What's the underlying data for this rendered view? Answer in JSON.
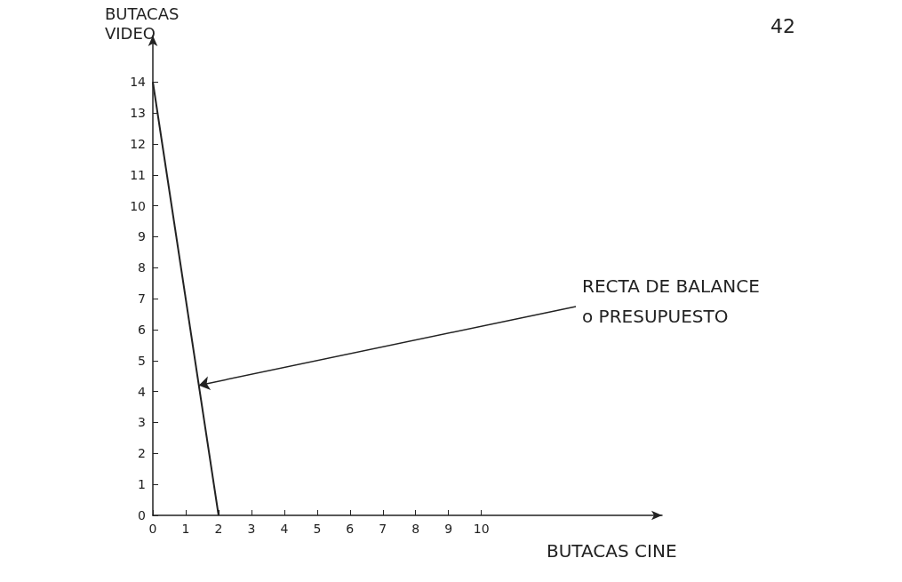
{
  "chart_data": {
    "type": "line",
    "x": [
      0,
      2
    ],
    "values": [
      14,
      0
    ],
    "color": "#222222",
    "xlabel": "BUTACAS CINE",
    "ylabel": "BUTACAS VIDEO",
    "xlim": [
      0,
      15.5
    ],
    "ylim": [
      0,
      15.5
    ],
    "xticks": [
      0,
      1,
      2,
      3,
      4,
      5,
      6,
      7,
      8,
      9,
      10
    ],
    "yticks": [
      0,
      1,
      2,
      3,
      4,
      5,
      6,
      7,
      8,
      9,
      10,
      11,
      12,
      13,
      14
    ],
    "annotations": [
      "42",
      {
        "text": "RECTA DE BALANCE\no PRESUPUESTO",
        "x": 1.4,
        "y": 4.2
      }
    ],
    "grid": false,
    "marker": "none",
    "line_style": "solid"
  }
}
